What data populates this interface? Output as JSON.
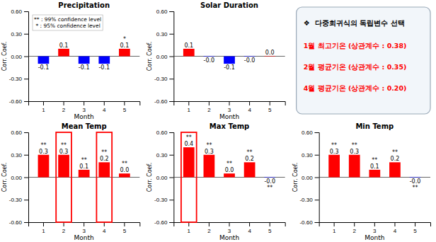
{
  "chart_data": [
    {
      "type": "bar",
      "title": "Precipitation",
      "categories": [
        "1",
        "2",
        "3",
        "4",
        "5"
      ],
      "values": [
        -0.1,
        0.1,
        -0.1,
        -0.1,
        0.1
      ],
      "value_labels": [
        "-0.1",
        "0.1",
        "-0.1",
        "-0.1",
        "0.1"
      ],
      "colors": [
        "blue",
        "red",
        "blue",
        "blue",
        "red"
      ],
      "stars": [
        null,
        null,
        null,
        null,
        "*"
      ],
      "data_labels": true,
      "x_label": "Month",
      "y_label": "Corr. Coef.",
      "ylim": [
        -0.6,
        0.6
      ],
      "yticks": [
        {
          "value": -0.6,
          "label": "-0.60"
        },
        {
          "value": -0.3,
          "label": "-0.30"
        },
        {
          "value": 0,
          "label": "0.00"
        },
        {
          "value": 0.3,
          "label": "0.30"
        },
        {
          "value": 0.6,
          "label": "0.60"
        }
      ],
      "grid": false,
      "annotations": [
        "** : 99% confidence level",
        " * : 95% confidence level"
      ]
    },
    {
      "type": "bar",
      "title": "Solar Duration",
      "categories": [
        "1",
        "2",
        "3",
        "4",
        "5"
      ],
      "values": [
        0.1,
        -0.005,
        -0.1,
        -0.005,
        0.005
      ],
      "value_labels": [
        "0.1",
        "-0.0",
        "-0.1",
        "-0.0",
        "0.0"
      ],
      "colors": [
        "red",
        "blue",
        "blue",
        "blue",
        "red"
      ],
      "data_labels": true,
      "x_label": "Month",
      "y_label": "Corr. Coef.",
      "ylim": [
        -0.6,
        0.6
      ],
      "yticks": [
        {
          "value": -0.6,
          "label": "-0.60"
        },
        {
          "value": -0.3,
          "label": "-0.30"
        },
        {
          "value": 0,
          "label": "0.00"
        },
        {
          "value": 0.3,
          "label": "0.30"
        },
        {
          "value": 0.6,
          "label": "0.60"
        }
      ],
      "grid": false
    },
    {
      "type": "text",
      "title": "❖  다중회귀식의 독립변수 선택",
      "annotations": [
        "1월 최고기온 (상관계수 : 0.38)",
        "2월 평균기온 (상관계수 : 0.35)",
        "4월 평균기온 (상관계수 : 0.20)"
      ],
      "color": "red"
    },
    {
      "type": "bar",
      "title": "Mean Temp",
      "categories": [
        "1",
        "2",
        "3",
        "4",
        "5"
      ],
      "values": [
        0.3,
        0.3,
        0.1,
        0.2,
        0.05
      ],
      "value_labels": [
        "0.3",
        "0.3",
        "0.1",
        "0.2",
        "0.0"
      ],
      "colors": [
        "red",
        "red",
        "red",
        "red",
        "red"
      ],
      "stars": [
        "**",
        "**",
        "**",
        "**",
        "**"
      ],
      "highlighted": [
        "2",
        "4"
      ],
      "data_labels": true,
      "x_label": "Month",
      "y_label": "Corr. Coef.",
      "ylim": [
        -0.6,
        0.6
      ],
      "yticks": [
        {
          "value": -0.6,
          "label": "-0.60"
        },
        {
          "value": -0.3,
          "label": "-0.30"
        },
        {
          "value": 0,
          "label": "0.00"
        },
        {
          "value": 0.3,
          "label": "0.30"
        },
        {
          "value": 0.6,
          "label": "0.60"
        }
      ],
      "grid": false
    },
    {
      "type": "bar",
      "title": "Max Temp",
      "categories": [
        "1",
        "2",
        "3",
        "4",
        "5"
      ],
      "values": [
        0.4,
        0.3,
        0.05,
        0.2,
        -0.005
      ],
      "value_labels": [
        "0.4",
        "0.3",
        "0.0",
        "0.2",
        "-0.0"
      ],
      "colors": [
        "red",
        "red",
        "red",
        "red",
        "blue"
      ],
      "stars": [
        "**",
        "**",
        "**",
        "**",
        "**"
      ],
      "highlighted": [
        "1"
      ],
      "data_labels": true,
      "x_label": "Month",
      "y_label": "Corr. Coef.",
      "ylim": [
        -0.6,
        0.6
      ],
      "yticks": [
        {
          "value": -0.6,
          "label": "-0.60"
        },
        {
          "value": -0.3,
          "label": "-0.30"
        },
        {
          "value": 0,
          "label": "0.00"
        },
        {
          "value": 0.3,
          "label": "0.30"
        },
        {
          "value": 0.6,
          "label": "0.60"
        }
      ],
      "grid": false
    },
    {
      "type": "bar",
      "title": "Min Temp",
      "categories": [
        "1",
        "2",
        "3",
        "4",
        "5"
      ],
      "values": [
        0.3,
        0.3,
        0.1,
        0.2,
        -0.005
      ],
      "value_labels": [
        "0.3",
        "0.3",
        "0.1",
        "0.2",
        "-0.0"
      ],
      "colors": [
        "red",
        "red",
        "red",
        "red",
        "blue"
      ],
      "stars": [
        "**",
        "**",
        "**",
        "**",
        "**"
      ],
      "data_labels": true,
      "x_label": "Month",
      "y_label": "Corr. Coef.",
      "ylim": [
        -0.6,
        0.6
      ],
      "yticks": [
        {
          "value": -0.6,
          "label": "-0.60"
        },
        {
          "value": -0.3,
          "label": "-0.30"
        },
        {
          "value": 0,
          "label": "0.00"
        },
        {
          "value": 0.3,
          "label": "0.30"
        },
        {
          "value": 0.6,
          "label": "0.60"
        }
      ],
      "grid": false
    }
  ]
}
